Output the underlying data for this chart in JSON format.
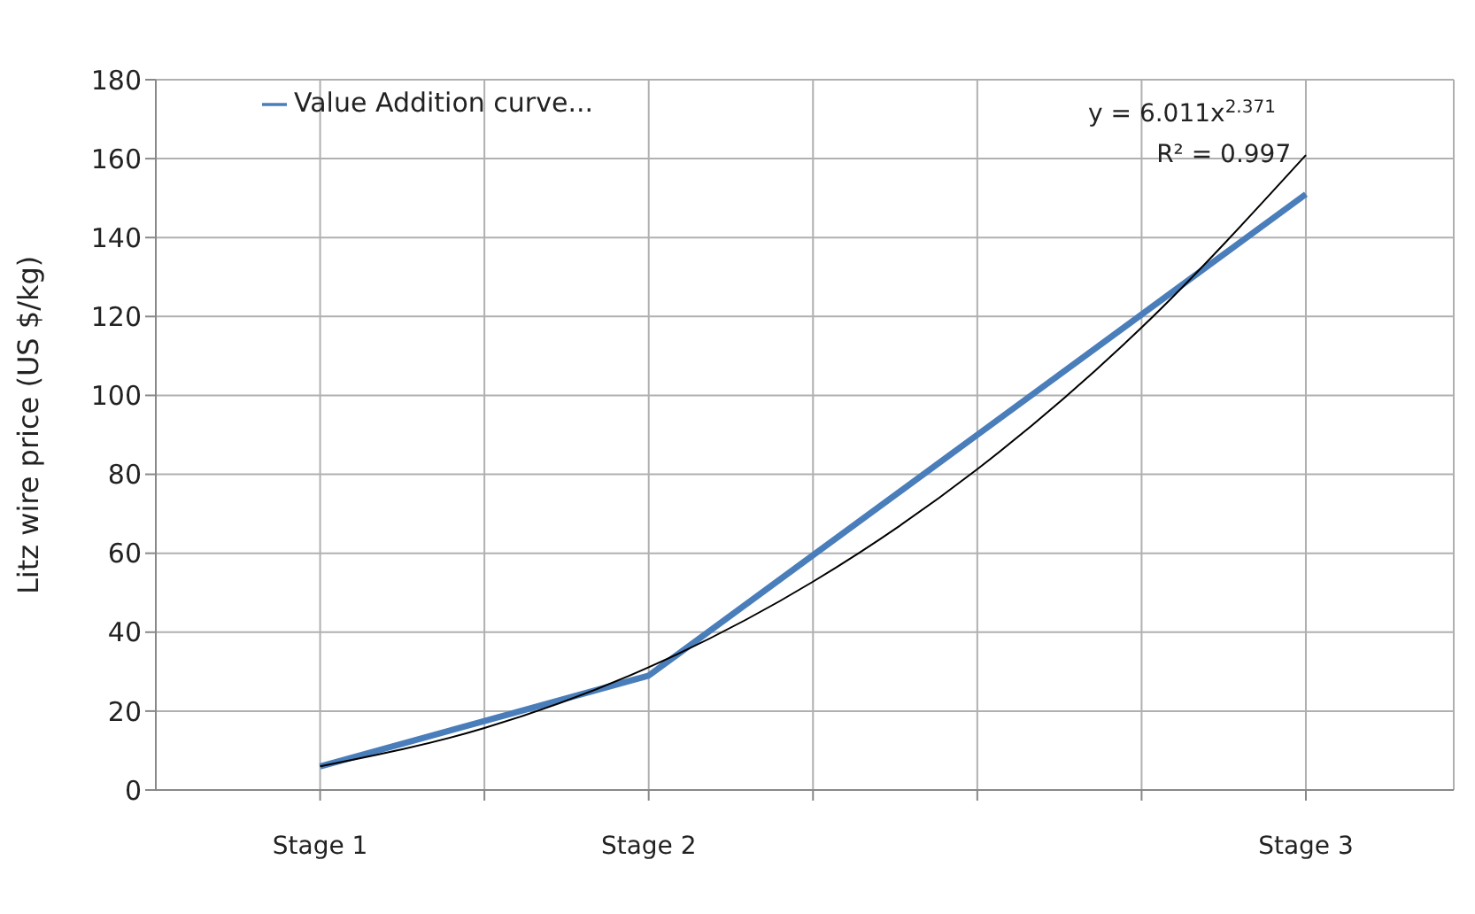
{
  "chart_data": {
    "type": "line",
    "ylabel": "Litz wire price (US $/kg)",
    "categories": [
      "Stage 1",
      null,
      "Stage 2",
      null,
      null,
      null,
      "Stage 3"
    ],
    "ylim": [
      0,
      180
    ],
    "yticks": [
      0,
      20,
      40,
      60,
      80,
      100,
      120,
      140,
      160,
      180
    ],
    "grid": true,
    "legend": "top left",
    "marker": "none",
    "line_style": "solid",
    "series": [
      {
        "name": "Value Addition curve...",
        "color": "#4a7ebb",
        "values": [
          6,
          17.5,
          29,
          59.5,
          90,
          120.5,
          151
        ]
      },
      {
        "type": "line",
        "color": "#000000",
        "values": [
          6.0,
          15.7,
          31.1,
          52.8,
          81.3,
          117.2,
          160.9
        ]
      }
    ],
    "annotations": [
      {
        "text": "y = 6.011x$^{2.371}$",
        "x": "Stage 3",
        "y": 161
      },
      "R² = 0.997"
    ]
  }
}
